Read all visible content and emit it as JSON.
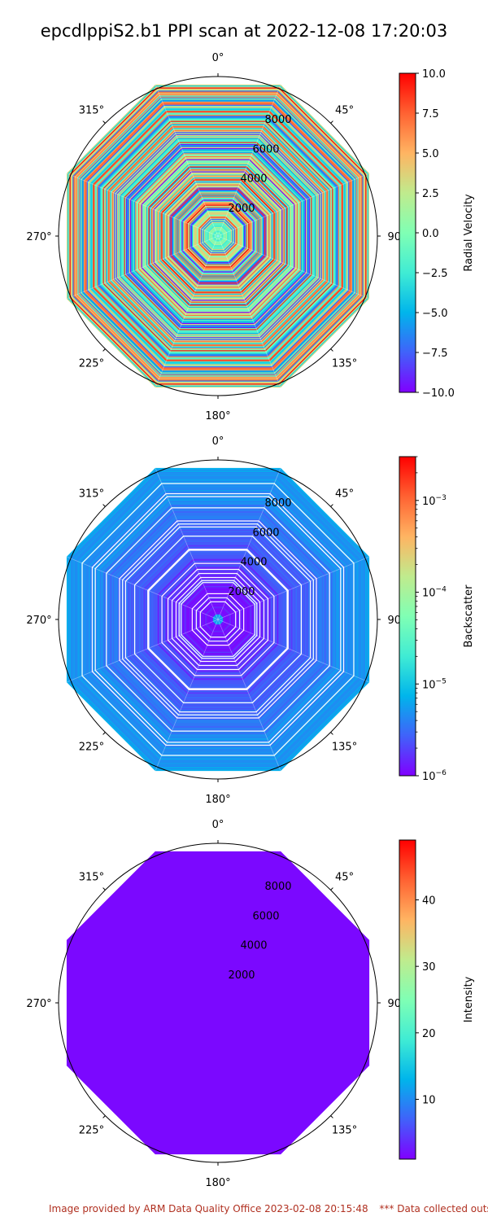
{
  "title": "epcdlppiS2.b1 PPI scan at 2022-12-08 17:20:03",
  "footer": {
    "left": "Image provided by ARM Data Quality Office 2023-02-08 20:15:48",
    "right": "*** Data collected outside"
  },
  "colors": {
    "colormap": "rainbow",
    "rainbow_stops": [
      "#8000ff",
      "#4062fa",
      "#00b5eb",
      "#40ecd4",
      "#80ffb4",
      "#c0eb8d",
      "#ffb462",
      "#ff6232",
      "#ff0000"
    ]
  },
  "chart_data": [
    {
      "type": "heatmap",
      "projection": "polar",
      "theta_zero": "north",
      "theta_direction": "clockwise",
      "theta_ticks": [
        "0°",
        "45°",
        "90°",
        "135°",
        "180°",
        "225°",
        "270°",
        "315°"
      ],
      "r_ticks": [
        "2000",
        "4000",
        "6000",
        "8000"
      ],
      "r_max": 10000,
      "range_max": 9500,
      "colorbar_label": "Radial Velocity",
      "colorbar_scale": "linear",
      "clim": [
        -10.0,
        10.0
      ],
      "colorbar_ticks": [
        "10.0",
        "7.5",
        "5.0",
        "2.5",
        "0.0",
        "−2.5",
        "−5.0",
        "−7.5",
        "−10.0"
      ],
      "field": "random striped values spanning full range"
    },
    {
      "type": "heatmap",
      "projection": "polar",
      "theta_zero": "north",
      "theta_direction": "clockwise",
      "theta_ticks": [
        "0°",
        "45°",
        "90°",
        "135°",
        "180°",
        "225°",
        "270°",
        "315°"
      ],
      "r_ticks": [
        "2000",
        "4000",
        "6000",
        "8000"
      ],
      "r_max": 10000,
      "range_max": 9500,
      "colorbar_label": "Backscatter",
      "colorbar_scale": "log",
      "clim": [
        1e-06,
        0.003
      ],
      "colorbar_ticks": [
        "10",
        "10",
        "10",
        "10"
      ],
      "colorbar_tick_exponents": [
        "−3",
        "−4",
        "−5",
        "−6"
      ],
      "colorbar_tick_values": [
        0.001,
        0.0001,
        1e-05,
        1e-06
      ],
      "field": "mostly low values (~1e-6 to 2e-5) with gaps"
    },
    {
      "type": "heatmap",
      "projection": "polar",
      "theta_zero": "north",
      "theta_direction": "clockwise",
      "theta_ticks": [
        "0°",
        "45°",
        "90°",
        "135°",
        "180°",
        "225°",
        "270°",
        "315°"
      ],
      "r_ticks": [
        "2000",
        "4000",
        "6000",
        "8000"
      ],
      "r_max": 10000,
      "range_max": 9500,
      "colorbar_label": "Intensity",
      "colorbar_scale": "linear",
      "clim": [
        1,
        49
      ],
      "colorbar_ticks": [
        "40",
        "30",
        "20",
        "10"
      ],
      "colorbar_tick_values": [
        40,
        30,
        20,
        10
      ],
      "field": "uniform minimum value (~1)"
    }
  ]
}
